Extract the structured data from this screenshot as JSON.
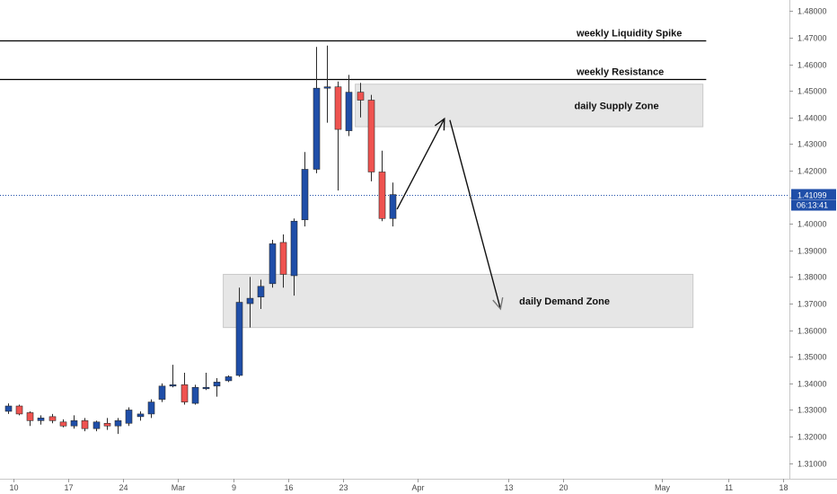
{
  "chart_data": {
    "type": "candlestick",
    "colors": {
      "up": "#1f4ea8",
      "down": "#ef5350",
      "level_line": "#000000",
      "zone_fill": "#e6e6e6",
      "zone_stroke": "#c9c9c9",
      "price_line": "#1f4ea8",
      "tag_bg": "#1f4ea8",
      "arrow": "#111111",
      "arrow_secondary": "#777777"
    },
    "y_axis": {
      "range": [
        1.305,
        1.485
      ],
      "ticks": [
        "1.31000",
        "1.32000",
        "1.33000",
        "1.34000",
        "1.35000",
        "1.36000",
        "1.37000",
        "1.38000",
        "1.39000",
        "1.40000",
        "1.41000",
        "1.42000",
        "1.43000",
        "1.44000",
        "1.45000",
        "1.46000",
        "1.47000",
        "1.48000"
      ],
      "position": "right"
    },
    "x_axis": {
      "range": [
        0,
        73
      ],
      "ticks": [
        {
          "label": "10",
          "x": 0.5
        },
        {
          "label": "17",
          "x": 5.5
        },
        {
          "label": "24",
          "x": 10.5
        },
        {
          "label": "Mar",
          "x": 15.5
        },
        {
          "label": "9",
          "x": 20.5
        },
        {
          "label": "16",
          "x": 25.5
        },
        {
          "label": "23",
          "x": 30.5
        },
        {
          "label": "Apr",
          "x": 37.3
        },
        {
          "label": "13",
          "x": 45.5
        },
        {
          "label": "20",
          "x": 50.5
        },
        {
          "label": "May",
          "x": 59.5
        },
        {
          "label": "11",
          "x": 65.5
        },
        {
          "label": "18",
          "x": 70.5
        }
      ]
    },
    "candles": [
      {
        "o": 1.3295,
        "h": 1.3325,
        "l": 1.3285,
        "c": 1.3315
      },
      {
        "o": 1.3315,
        "h": 1.332,
        "l": 1.328,
        "c": 1.3285
      },
      {
        "o": 1.329,
        "h": 1.3295,
        "l": 1.324,
        "c": 1.326
      },
      {
        "o": 1.326,
        "h": 1.328,
        "l": 1.3245,
        "c": 1.327
      },
      {
        "o": 1.3275,
        "h": 1.3285,
        "l": 1.325,
        "c": 1.326
      },
      {
        "o": 1.3255,
        "h": 1.3265,
        "l": 1.3235,
        "c": 1.324
      },
      {
        "o": 1.324,
        "h": 1.328,
        "l": 1.323,
        "c": 1.326
      },
      {
        "o": 1.326,
        "h": 1.327,
        "l": 1.322,
        "c": 1.323
      },
      {
        "o": 1.323,
        "h": 1.326,
        "l": 1.322,
        "c": 1.3255
      },
      {
        "o": 1.325,
        "h": 1.327,
        "l": 1.3225,
        "c": 1.324
      },
      {
        "o": 1.324,
        "h": 1.327,
        "l": 1.321,
        "c": 1.326
      },
      {
        "o": 1.325,
        "h": 1.331,
        "l": 1.324,
        "c": 1.33
      },
      {
        "o": 1.3275,
        "h": 1.3295,
        "l": 1.326,
        "c": 1.3285
      },
      {
        "o": 1.3285,
        "h": 1.334,
        "l": 1.327,
        "c": 1.333
      },
      {
        "o": 1.334,
        "h": 1.34,
        "l": 1.333,
        "c": 1.339
      },
      {
        "o": 1.339,
        "h": 1.347,
        "l": 1.3385,
        "c": 1.3395
      },
      {
        "o": 1.3395,
        "h": 1.344,
        "l": 1.332,
        "c": 1.333
      },
      {
        "o": 1.3325,
        "h": 1.3395,
        "l": 1.332,
        "c": 1.3385
      },
      {
        "o": 1.338,
        "h": 1.344,
        "l": 1.3375,
        "c": 1.3385
      },
      {
        "o": 1.339,
        "h": 1.342,
        "l": 1.335,
        "c": 1.3405
      },
      {
        "o": 1.341,
        "h": 1.343,
        "l": 1.3405,
        "c": 1.3425
      },
      {
        "o": 1.343,
        "h": 1.376,
        "l": 1.3425,
        "c": 1.3705
      },
      {
        "o": 1.37,
        "h": 1.38,
        "l": 1.361,
        "c": 1.372
      },
      {
        "o": 1.3725,
        "h": 1.379,
        "l": 1.368,
        "c": 1.3765
      },
      {
        "o": 1.3775,
        "h": 1.394,
        "l": 1.376,
        "c": 1.3925
      },
      {
        "o": 1.393,
        "h": 1.396,
        "l": 1.376,
        "c": 1.381
      },
      {
        "o": 1.3805,
        "h": 1.402,
        "l": 1.373,
        "c": 1.401
      },
      {
        "o": 1.4015,
        "h": 1.427,
        "l": 1.399,
        "c": 1.4205
      },
      {
        "o": 1.4205,
        "h": 1.4665,
        "l": 1.419,
        "c": 1.451
      },
      {
        "o": 1.451,
        "h": 1.467,
        "l": 1.438,
        "c": 1.4515
      },
      {
        "o": 1.4515,
        "h": 1.4535,
        "l": 1.4125,
        "c": 1.4355
      },
      {
        "o": 1.435,
        "h": 1.456,
        "l": 1.433,
        "c": 1.4495
      },
      {
        "o": 1.4495,
        "h": 1.453,
        "l": 1.44,
        "c": 1.4465
      },
      {
        "o": 1.4465,
        "h": 1.4485,
        "l": 1.416,
        "c": 1.4195
      },
      {
        "o": 1.4195,
        "h": 1.4275,
        "l": 1.401,
        "c": 1.402
      },
      {
        "o": 1.402,
        "h": 1.4155,
        "l": 1.399,
        "c": 1.411
      }
    ],
    "levels": [
      {
        "label": "weekly Liquidity Spike",
        "price": 1.469,
        "x_end": 63.5
      },
      {
        "label": "weekly Resistance",
        "price": 1.4545,
        "x_end": 63.5
      }
    ],
    "zones": [
      {
        "label": "daily Supply Zone",
        "top": 1.4525,
        "bottom": 1.4365,
        "x_start": 31.6,
        "x_end": 63.2
      },
      {
        "label": "daily Demand Zone",
        "top": 1.381,
        "bottom": 1.361,
        "x_start": 19.6,
        "x_end": 62.3
      }
    ],
    "arrows": [
      {
        "from": [
          35.4,
          1.4055
        ],
        "to": [
          39.7,
          1.4395
        ],
        "tone": "primary"
      },
      {
        "from": [
          40.2,
          1.439
        ],
        "to": [
          44.8,
          1.368
        ],
        "tone": "secondary"
      }
    ],
    "current_price": {
      "value": 1.41099,
      "label": "1.41099",
      "countdown": "06:13:41"
    }
  }
}
